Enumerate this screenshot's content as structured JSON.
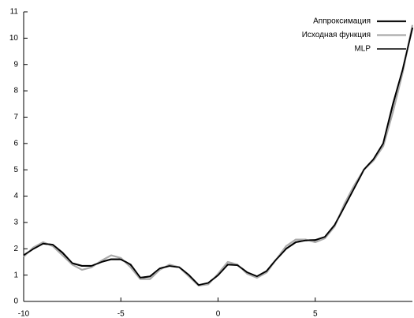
{
  "chart_data": {
    "type": "line",
    "x": [
      -10,
      -9.5,
      -9,
      -8.5,
      -8,
      -7.5,
      -7,
      -6.5,
      -6,
      -5.5,
      -5,
      -4.5,
      -4,
      -3.5,
      -3,
      -2.5,
      -2,
      -1.5,
      -1,
      -0.5,
      0,
      0.5,
      1,
      1.5,
      2,
      2.5,
      3,
      3.5,
      4,
      4.5,
      5,
      5.5,
      6,
      6.5,
      7,
      7.5,
      8,
      8.5,
      9,
      9.5,
      10
    ],
    "series": [
      {
        "name": "Аппроксимация",
        "color": "#111111",
        "width": 2.2,
        "values": [
          1.75,
          2.0,
          2.2,
          2.15,
          1.85,
          1.45,
          1.35,
          1.35,
          1.5,
          1.6,
          1.6,
          1.4,
          0.9,
          0.95,
          1.25,
          1.35,
          1.3,
          1.0,
          0.62,
          0.7,
          1.0,
          1.4,
          1.38,
          1.1,
          0.95,
          1.15,
          1.6,
          2.0,
          2.25,
          2.32,
          2.33,
          2.45,
          2.9,
          3.6,
          4.3,
          5.0,
          5.4,
          6.0,
          7.5,
          8.8,
          10.4
        ]
      },
      {
        "name": "Исходная функция",
        "color": "#aaaaaa",
        "width": 2.2,
        "values": [
          1.7,
          2.05,
          2.25,
          2.1,
          1.75,
          1.4,
          1.2,
          1.3,
          1.55,
          1.75,
          1.65,
          1.3,
          0.85,
          0.85,
          1.2,
          1.4,
          1.3,
          0.95,
          0.6,
          0.65,
          1.05,
          1.5,
          1.4,
          1.05,
          0.9,
          1.1,
          1.6,
          2.1,
          2.35,
          2.35,
          2.25,
          2.4,
          2.85,
          3.7,
          4.4,
          5.0,
          5.35,
          5.9,
          7.2,
          8.7,
          10.5
        ]
      },
      {
        "name": "MLP",
        "color": "#000000",
        "width": 1.6,
        "values": [
          1.75,
          2.0,
          2.2,
          2.15,
          1.85,
          1.45,
          1.35,
          1.35,
          1.5,
          1.6,
          1.6,
          1.4,
          0.9,
          0.95,
          1.25,
          1.35,
          1.3,
          1.0,
          0.62,
          0.7,
          1.0,
          1.4,
          1.38,
          1.1,
          0.95,
          1.15,
          1.6,
          2.0,
          2.25,
          2.32,
          2.33,
          2.45,
          2.9,
          3.6,
          4.3,
          5.0,
          5.4,
          6.0,
          7.5,
          8.8,
          10.4
        ]
      }
    ],
    "xlim": [
      -10,
      10
    ],
    "xticks": [
      -10,
      -5,
      0,
      5
    ],
    "ylim": [
      0,
      11
    ],
    "yticks": [
      0,
      1,
      2,
      3,
      4,
      5,
      6,
      7,
      8,
      9,
      10,
      11
    ],
    "legend": "top-right"
  }
}
